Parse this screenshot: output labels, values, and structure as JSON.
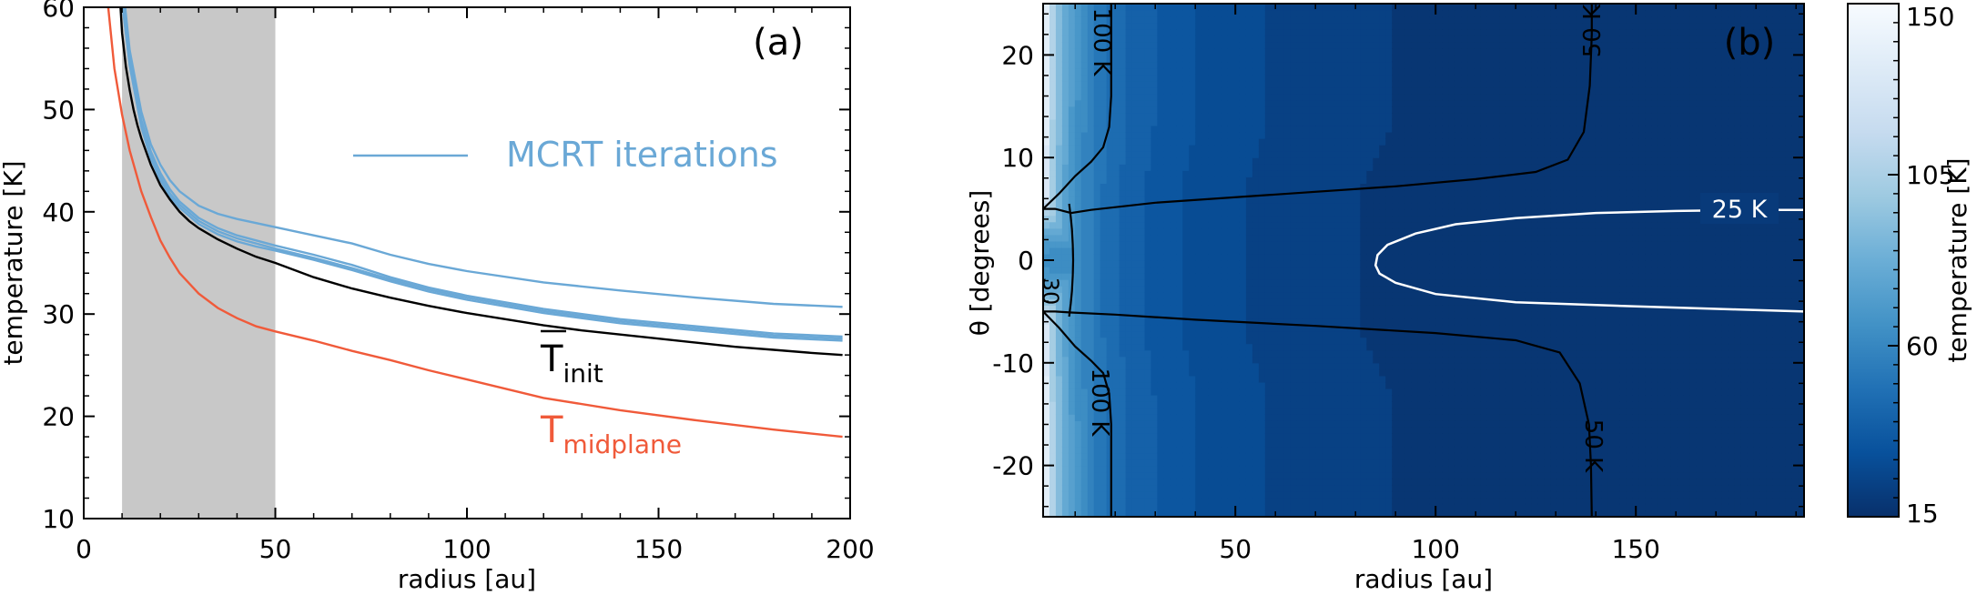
{
  "chart_data": [
    {
      "type": "line",
      "panel_label": "(a)",
      "xlabel": "radius [au]",
      "ylabel": "temperature [K]",
      "xlim": [
        0,
        200
      ],
      "ylim": [
        10,
        60
      ],
      "x_ticks": [
        0,
        50,
        100,
        150,
        200
      ],
      "y_ticks": [
        10,
        20,
        30,
        40,
        50,
        60
      ],
      "shaded_region": {
        "x": [
          10,
          50
        ],
        "color": "#c8c8c8"
      },
      "legend": {
        "label": "MCRT iterations",
        "color": "#6aa8d6",
        "placement": "upper-right"
      },
      "annotations": [
        {
          "base": "T",
          "sub": "init",
          "overbar": true,
          "color": "#000000",
          "x": 119,
          "y": 25.6
        },
        {
          "base": "T",
          "sub": "midplane",
          "overbar": false,
          "color": "#f05a3a",
          "x": 119,
          "y": 18.5
        }
      ],
      "series": [
        {
          "name": "T_init",
          "color": "#000000",
          "x": [
            9.6,
            10,
            11,
            12,
            13,
            14,
            15,
            17.5,
            20,
            22.5,
            25,
            27.5,
            30,
            35,
            40,
            45,
            50,
            60,
            70,
            80,
            90,
            100,
            110,
            120,
            130,
            140,
            150,
            160,
            170,
            180,
            190,
            198
          ],
          "y": [
            60,
            57.5,
            54.2,
            51.9,
            50.0,
            48.5,
            47.2,
            44.6,
            42.6,
            41.2,
            40.0,
            39.1,
            38.4,
            37.3,
            36.4,
            35.6,
            35.0,
            33.6,
            32.5,
            31.6,
            30.8,
            30.1,
            29.5,
            28.9,
            28.4,
            28.0,
            27.6,
            27.2,
            26.8,
            26.5,
            26.2,
            26.0
          ]
        },
        {
          "name": "T_midplane",
          "color": "#f05a3a",
          "x": [
            6.4,
            8,
            10,
            12,
            15,
            17.5,
            20,
            22.5,
            25,
            30,
            35,
            40,
            45,
            50,
            60,
            70,
            80,
            90,
            100,
            120,
            140,
            160,
            180,
            198
          ],
          "y": [
            60,
            54,
            49.5,
            46,
            42,
            39.5,
            37.2,
            35.5,
            34,
            32,
            30.6,
            29.6,
            28.8,
            28.3,
            27.4,
            26.4,
            25.5,
            24.5,
            23.6,
            21.8,
            20.6,
            19.6,
            18.7,
            18.0
          ]
        },
        {
          "name": "",
          "color": "#6aa8d6",
          "x": [
            10.8,
            12,
            15,
            17.5,
            20,
            22.5,
            25,
            30,
            35,
            40,
            45,
            50,
            60,
            70,
            80,
            90,
            100,
            120,
            140,
            160,
            180,
            198
          ],
          "y": [
            60,
            55.8,
            49.8,
            46.6,
            44.6,
            43.1,
            42.0,
            40.6,
            39.8,
            39.3,
            38.9,
            38.5,
            37.7,
            36.9,
            35.8,
            34.9,
            34.2,
            33.1,
            32.3,
            31.6,
            31.0,
            30.7
          ]
        },
        {
          "name": "",
          "color": "#6aa8d6",
          "x": [
            10.2,
            12,
            15,
            17.5,
            20,
            22.5,
            25,
            30,
            35,
            40,
            45,
            50,
            60,
            70,
            80,
            90,
            100,
            120,
            140,
            160,
            180,
            198
          ],
          "y": [
            60,
            55.0,
            49.0,
            45.9,
            43.8,
            42.2,
            41.0,
            39.4,
            38.4,
            37.7,
            37.2,
            36.7,
            35.8,
            34.8,
            33.6,
            32.6,
            31.8,
            30.5,
            29.5,
            28.8,
            28.1,
            27.8
          ]
        },
        {
          "name": "",
          "color": "#6aa8d6",
          "x": [
            10.2,
            12,
            15,
            17.5,
            20,
            22.5,
            25,
            30,
            35,
            40,
            45,
            50,
            60,
            70,
            80,
            90,
            100,
            120,
            140,
            160,
            180,
            198
          ],
          "y": [
            60,
            54.6,
            48.6,
            45.5,
            43.4,
            41.8,
            40.7,
            39.1,
            38.1,
            37.4,
            36.9,
            36.4,
            35.5,
            34.5,
            33.4,
            32.4,
            31.6,
            30.3,
            29.3,
            28.6,
            27.9,
            27.6
          ]
        },
        {
          "name": "",
          "color": "#6aa8d6",
          "x": [
            10.2,
            12,
            15,
            17.5,
            20,
            22.5,
            25,
            30,
            35,
            40,
            45,
            50,
            60,
            70,
            80,
            90,
            100,
            120,
            140,
            160,
            180,
            198
          ],
          "y": [
            60,
            54.3,
            48.3,
            45.2,
            43.1,
            41.5,
            40.4,
            38.8,
            37.8,
            37.1,
            36.6,
            36.2,
            35.3,
            34.3,
            33.2,
            32.2,
            31.4,
            30.1,
            29.1,
            28.4,
            27.7,
            27.4
          ]
        }
      ]
    },
    {
      "type": "heatmap",
      "panel_label": "(b)",
      "xlabel": "radius [au]",
      "ylabel": "θ [degrees]",
      "xlim": [
        2,
        192
      ],
      "ylim": [
        -25,
        25
      ],
      "x_ticks": [
        50,
        100,
        150
      ],
      "y_ticks": [
        -20,
        -10,
        0,
        10,
        20
      ],
      "colorbar": {
        "label": "temperature [K]",
        "ticks": [
          15,
          60,
          105,
          150
        ],
        "range": [
          15,
          150
        ],
        "colors": [
          "#08306b",
          "#08519c",
          "#2171b5",
          "#4292c6",
          "#6baed6",
          "#9ecae1",
          "#c6dbef",
          "#deebf7",
          "#f7fbff"
        ]
      },
      "contours": [
        {
          "label": "25 K",
          "color": "#ffffff"
        },
        {
          "label": "50 K",
          "color": "#000000"
        },
        {
          "label": "100 K",
          "color": "#000000"
        },
        {
          "label": "30",
          "color": "#000000"
        }
      ]
    }
  ]
}
